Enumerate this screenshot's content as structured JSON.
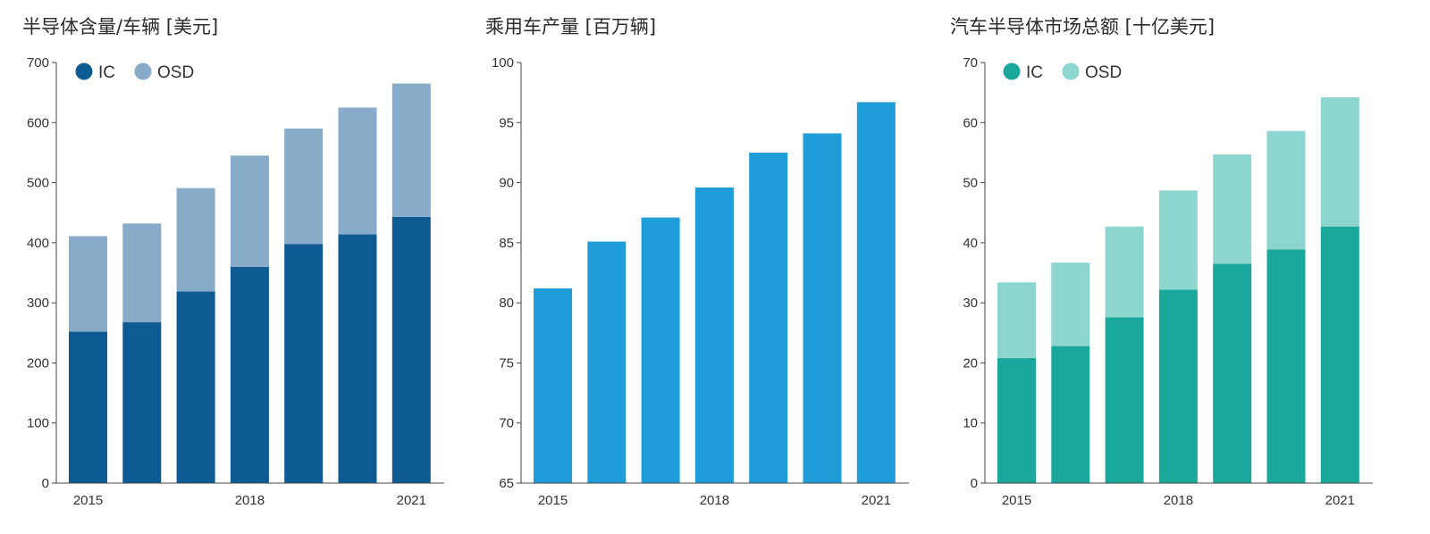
{
  "chart_data": [
    {
      "type": "bar",
      "stacked": true,
      "title": "半导体含量/车辆 [美元]",
      "categories": [
        "2015",
        "2016",
        "2017",
        "2018",
        "2019",
        "2020",
        "2021"
      ],
      "xtick_labels": [
        "2015",
        "",
        "",
        "2018",
        "",
        "",
        "2021"
      ],
      "ylim": [
        0,
        700
      ],
      "yticks": [
        0,
        100,
        200,
        300,
        400,
        500,
        600,
        700
      ],
      "series": [
        {
          "name": "IC",
          "color": "#0e5a93",
          "values": [
            252,
            268,
            319,
            360,
            398,
            414,
            443
          ]
        },
        {
          "name": "OSD",
          "color": "#87abc9",
          "values": [
            159,
            164,
            172,
            185,
            192,
            211,
            222
          ]
        }
      ],
      "legend": "top-left",
      "grid": false
    },
    {
      "type": "bar",
      "title": "乘用车产量 [百万辆]",
      "categories": [
        "2015",
        "2016",
        "2017",
        "2018",
        "2019",
        "2020",
        "2021"
      ],
      "xtick_labels": [
        "2015",
        "",
        "",
        "2018",
        "",
        "",
        "2021"
      ],
      "ylim": [
        65,
        100
      ],
      "yticks": [
        65,
        70,
        75,
        80,
        85,
        90,
        95,
        100
      ],
      "series": [
        {
          "name": "",
          "color": "#1e9dd8",
          "values": [
            81.2,
            85.1,
            87.1,
            89.6,
            92.5,
            94.1,
            96.7
          ]
        }
      ],
      "grid": false
    },
    {
      "type": "bar",
      "stacked": true,
      "title": "汽车半导体市场总额 [十亿美元]",
      "categories": [
        "2015",
        "2016",
        "2017",
        "2018",
        "2019",
        "2020",
        "2021"
      ],
      "xtick_labels": [
        "2015",
        "",
        "",
        "2018",
        "",
        "",
        "2021"
      ],
      "ylim": [
        0,
        70
      ],
      "yticks": [
        0,
        10,
        20,
        30,
        40,
        50,
        60,
        70
      ],
      "series": [
        {
          "name": "IC",
          "color": "#1aa89c",
          "values": [
            20.8,
            22.8,
            27.6,
            32.2,
            36.5,
            38.9,
            42.7
          ]
        },
        {
          "name": "OSD",
          "color": "#8dd5cf",
          "values": [
            12.6,
            13.9,
            15.1,
            16.5,
            18.2,
            19.7,
            21.5
          ]
        }
      ],
      "legend": "top-left",
      "grid": false
    }
  ]
}
